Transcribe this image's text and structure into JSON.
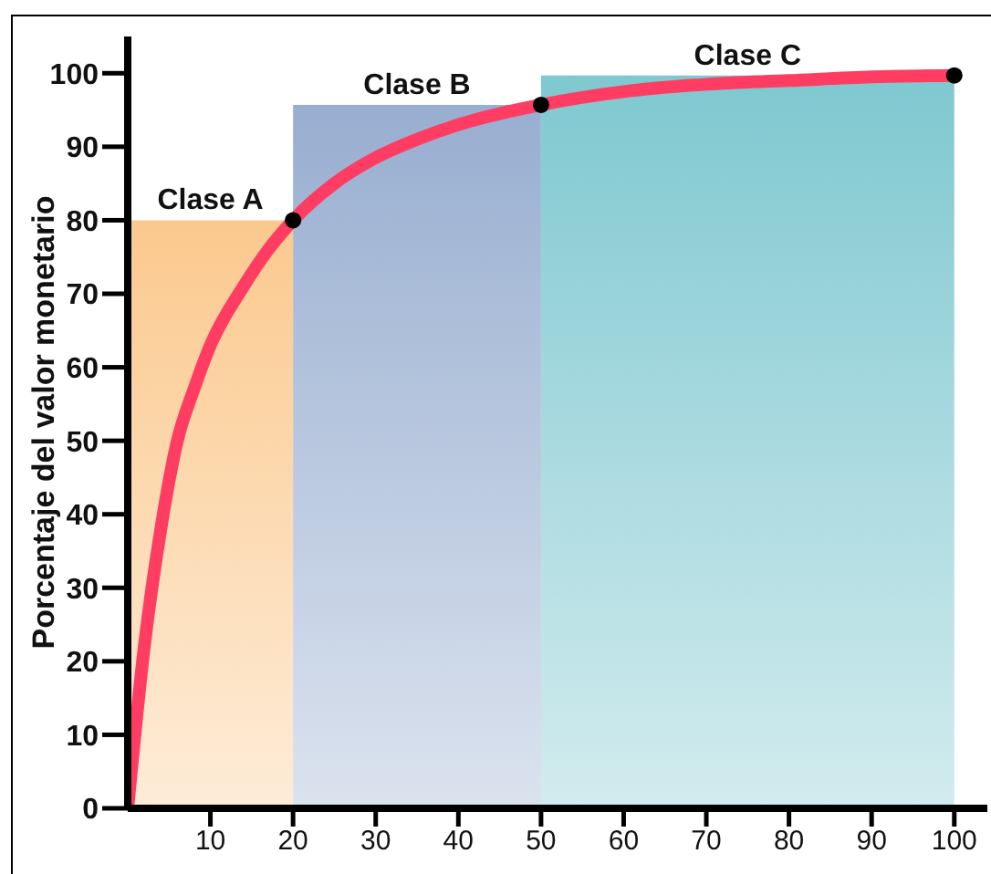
{
  "chart_data": {
    "type": "line",
    "ylabel": "Porcentaje del valor monetario",
    "xlim": [
      0,
      104
    ],
    "ylim": [
      0,
      105
    ],
    "xticks": [
      10,
      20,
      30,
      40,
      50,
      60,
      70,
      80,
      90,
      100
    ],
    "yticks": [
      0,
      10,
      20,
      30,
      40,
      50,
      60,
      70,
      80,
      90,
      100
    ],
    "marker": "none",
    "line_style": "solid",
    "series": [
      {
        "color": "#ff3d63",
        "x": [
          0,
          2,
          4,
          6,
          8,
          10,
          14,
          17,
          20,
          25,
          30,
          35,
          40,
          50,
          60,
          70,
          80,
          90,
          100
        ],
        "values": [
          0,
          22,
          38,
          50,
          57,
          63,
          71,
          76,
          80,
          85,
          88.5,
          91,
          93,
          95.7,
          97.5,
          98.5,
          99,
          99.5,
          99.7
        ]
      },
      {
        "type": "scatter",
        "color": "#000000",
        "marker": "circle",
        "x": [
          20,
          50,
          100
        ],
        "values": [
          80,
          95.7,
          99.7
        ]
      }
    ],
    "bands": [
      {
        "axis": "x",
        "from": 0,
        "to": 20,
        "label": "Clase A",
        "color": "#fbc98e"
      },
      {
        "axis": "x",
        "from": 20,
        "to": 50,
        "label": "Clase B",
        "color": "#98aed0"
      },
      {
        "axis": "x",
        "from": 50,
        "to": 100,
        "label": "Clase C",
        "color": "#7fc8d0"
      }
    ]
  }
}
